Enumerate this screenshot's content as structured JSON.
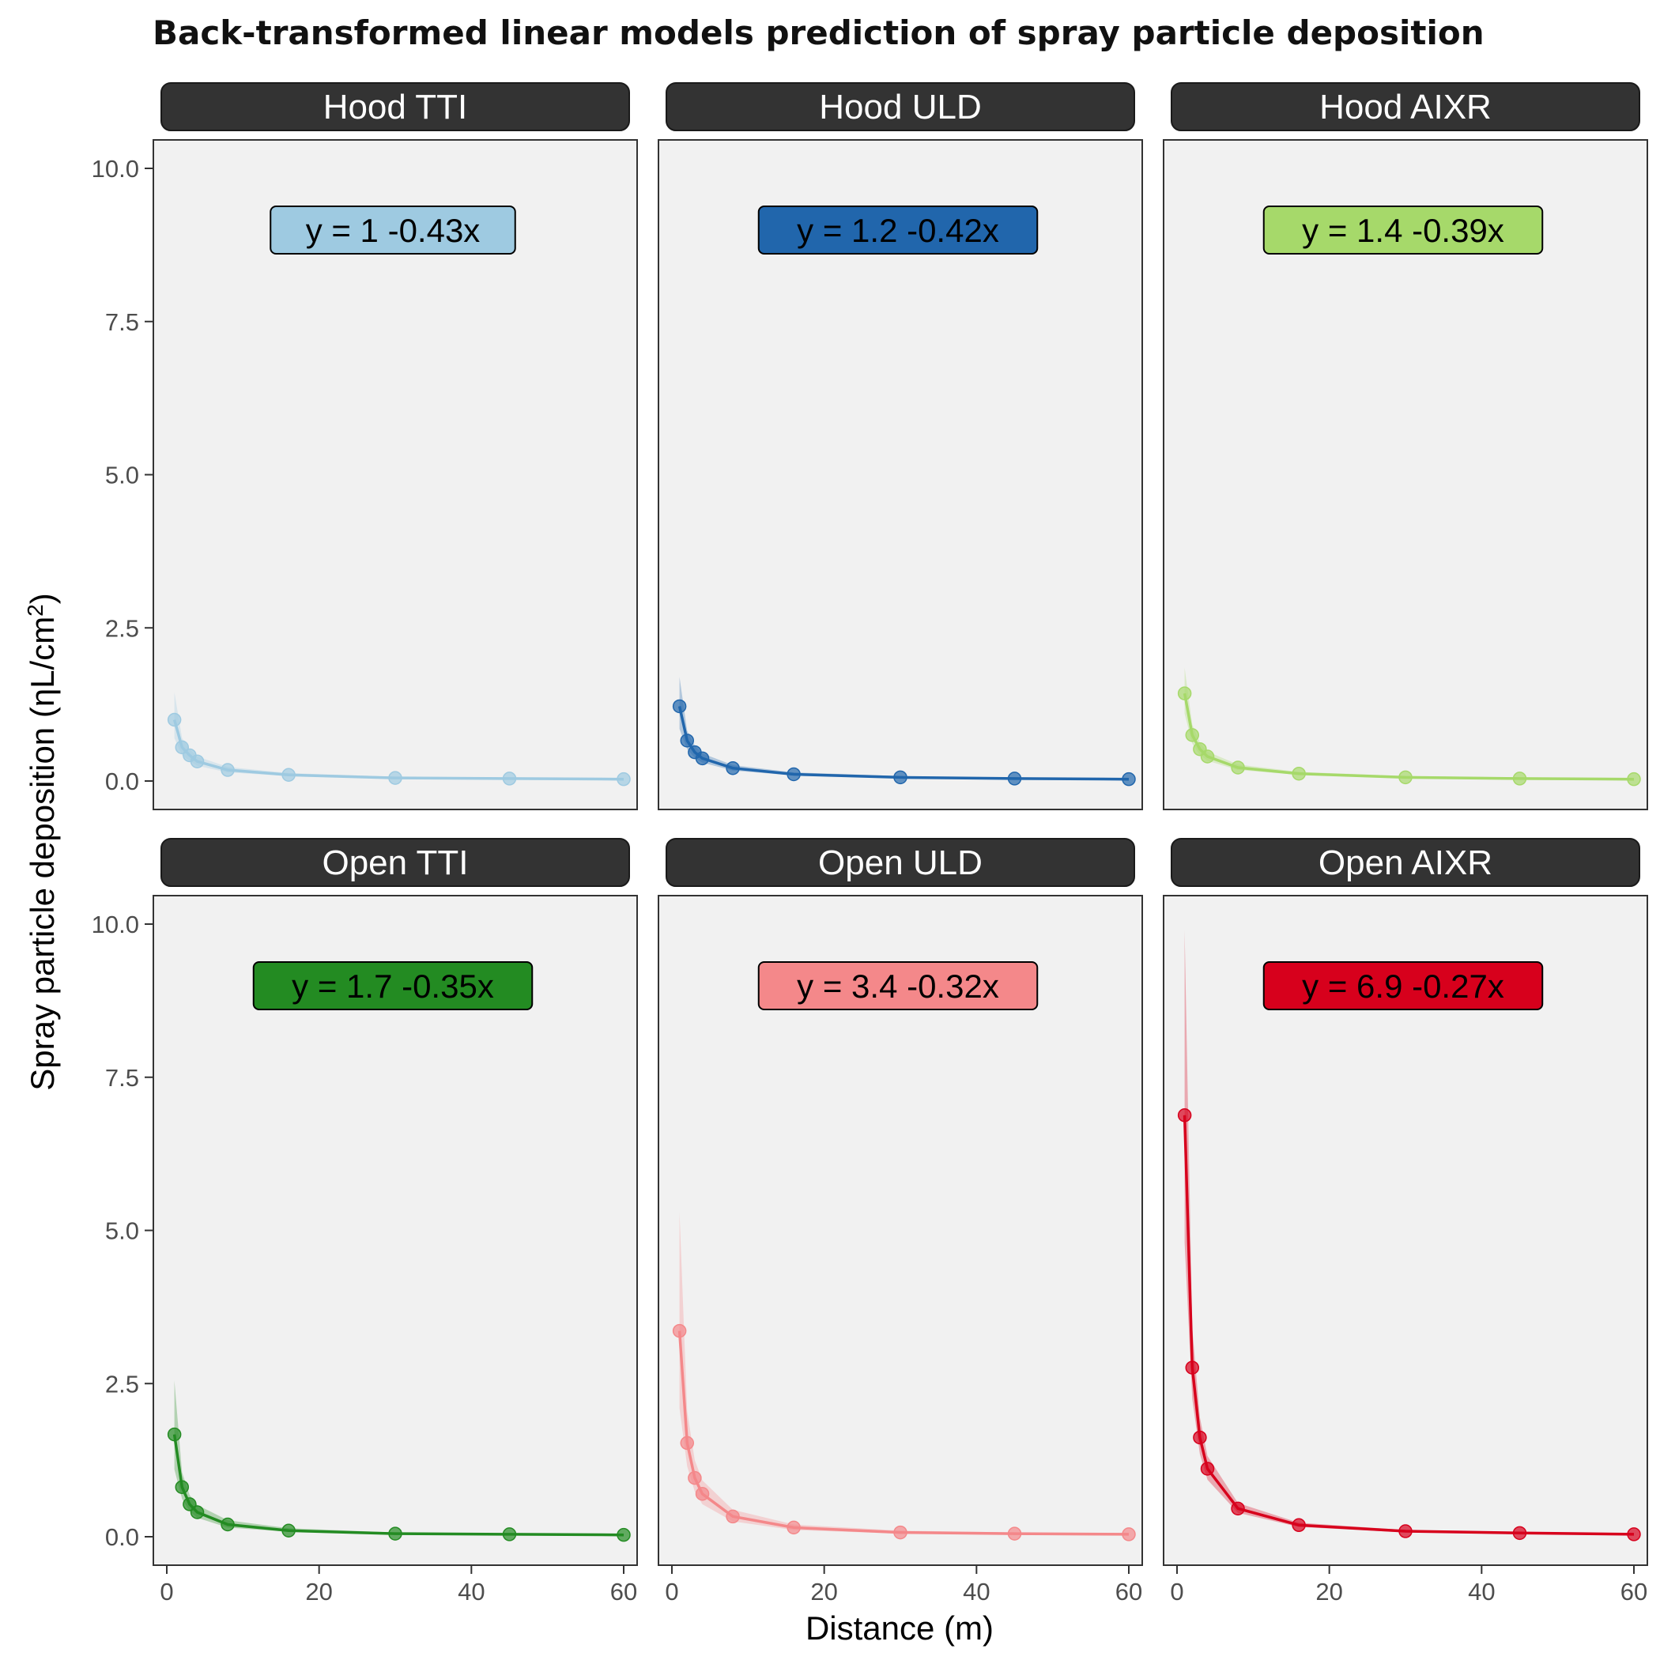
{
  "chart_data": {
    "type": "line",
    "title": "Back-transformed linear models prediction of spray particle deposition",
    "xlabel": "Distance (m)",
    "ylabel": {
      "main": "Spray particle deposition (ηL/cm",
      "superscript": "2",
      "close": ")"
    },
    "xlim": [
      0,
      60
    ],
    "ylim": [
      0,
      10
    ],
    "x_ticks": [
      0,
      20,
      40,
      60
    ],
    "x_tick_labels": [
      "0",
      "20",
      "40",
      "60"
    ],
    "y_ticks": [
      0,
      2.5,
      5,
      7.5,
      10
    ],
    "y_tick_labels": [
      "0.0",
      "2.5",
      "5.0",
      "7.5",
      "10.0"
    ],
    "grid": false,
    "layout": "2 rows x 3 columns facets",
    "x": [
      1,
      2,
      3,
      4,
      8,
      16,
      30,
      45,
      60
    ],
    "panels": [
      {
        "name": "Hood TTI",
        "equation": "y =  1 -0.43x",
        "color": "#9ecae1",
        "values": [
          1.0,
          0.55,
          0.42,
          0.32,
          0.18,
          0.1,
          0.05,
          0.04,
          0.03
        ],
        "upper": [
          1.45,
          0.7,
          0.52,
          0.4,
          0.23,
          0.13,
          0.07,
          0.05,
          0.04
        ],
        "lower": [
          0.7,
          0.42,
          0.33,
          0.25,
          0.14,
          0.08,
          0.04,
          0.03,
          0.02
        ]
      },
      {
        "name": "Hood ULD",
        "equation": "y =  1.2 -0.42x",
        "color": "#2166ac",
        "values": [
          1.22,
          0.66,
          0.47,
          0.37,
          0.21,
          0.11,
          0.06,
          0.04,
          0.03
        ],
        "upper": [
          1.7,
          0.82,
          0.58,
          0.45,
          0.26,
          0.14,
          0.08,
          0.05,
          0.04
        ],
        "lower": [
          0.85,
          0.52,
          0.38,
          0.3,
          0.17,
          0.09,
          0.05,
          0.03,
          0.02
        ]
      },
      {
        "name": "Hood AIXR",
        "equation": "y =  1.4 -0.39x",
        "color": "#a6d96a",
        "values": [
          1.43,
          0.75,
          0.52,
          0.4,
          0.22,
          0.12,
          0.06,
          0.04,
          0.03
        ],
        "upper": [
          1.85,
          0.92,
          0.63,
          0.48,
          0.27,
          0.15,
          0.08,
          0.06,
          0.04
        ],
        "lower": [
          1.1,
          0.61,
          0.43,
          0.33,
          0.18,
          0.1,
          0.05,
          0.03,
          0.02
        ]
      },
      {
        "name": "Open TTI",
        "equation": "y =  1.7 -0.35x",
        "color": "#238b22",
        "values": [
          1.67,
          0.81,
          0.53,
          0.4,
          0.2,
          0.1,
          0.05,
          0.04,
          0.03
        ],
        "upper": [
          2.55,
          1.05,
          0.68,
          0.52,
          0.27,
          0.14,
          0.07,
          0.05,
          0.04
        ],
        "lower": [
          1.1,
          0.62,
          0.42,
          0.31,
          0.15,
          0.08,
          0.04,
          0.03,
          0.02
        ]
      },
      {
        "name": "Open ULD",
        "equation": "y =  3.4 -0.32x",
        "color": "#f4888a",
        "values": [
          3.36,
          1.53,
          0.96,
          0.7,
          0.33,
          0.15,
          0.07,
          0.05,
          0.04
        ],
        "upper": [
          5.3,
          2.05,
          1.25,
          0.92,
          0.44,
          0.2,
          0.1,
          0.07,
          0.05
        ],
        "lower": [
          2.1,
          1.15,
          0.74,
          0.53,
          0.25,
          0.11,
          0.05,
          0.03,
          0.02
        ]
      },
      {
        "name": "Open AIXR",
        "equation": "y =  6.9 -0.27x",
        "color": "#d7001c",
        "values": [
          6.88,
          2.76,
          1.62,
          1.11,
          0.46,
          0.19,
          0.09,
          0.06,
          0.04
        ],
        "upper": [
          9.9,
          3.4,
          1.95,
          1.32,
          0.55,
          0.23,
          0.11,
          0.07,
          0.05
        ],
        "lower": [
          4.8,
          2.25,
          1.35,
          0.93,
          0.39,
          0.16,
          0.07,
          0.05,
          0.03
        ]
      }
    ]
  }
}
